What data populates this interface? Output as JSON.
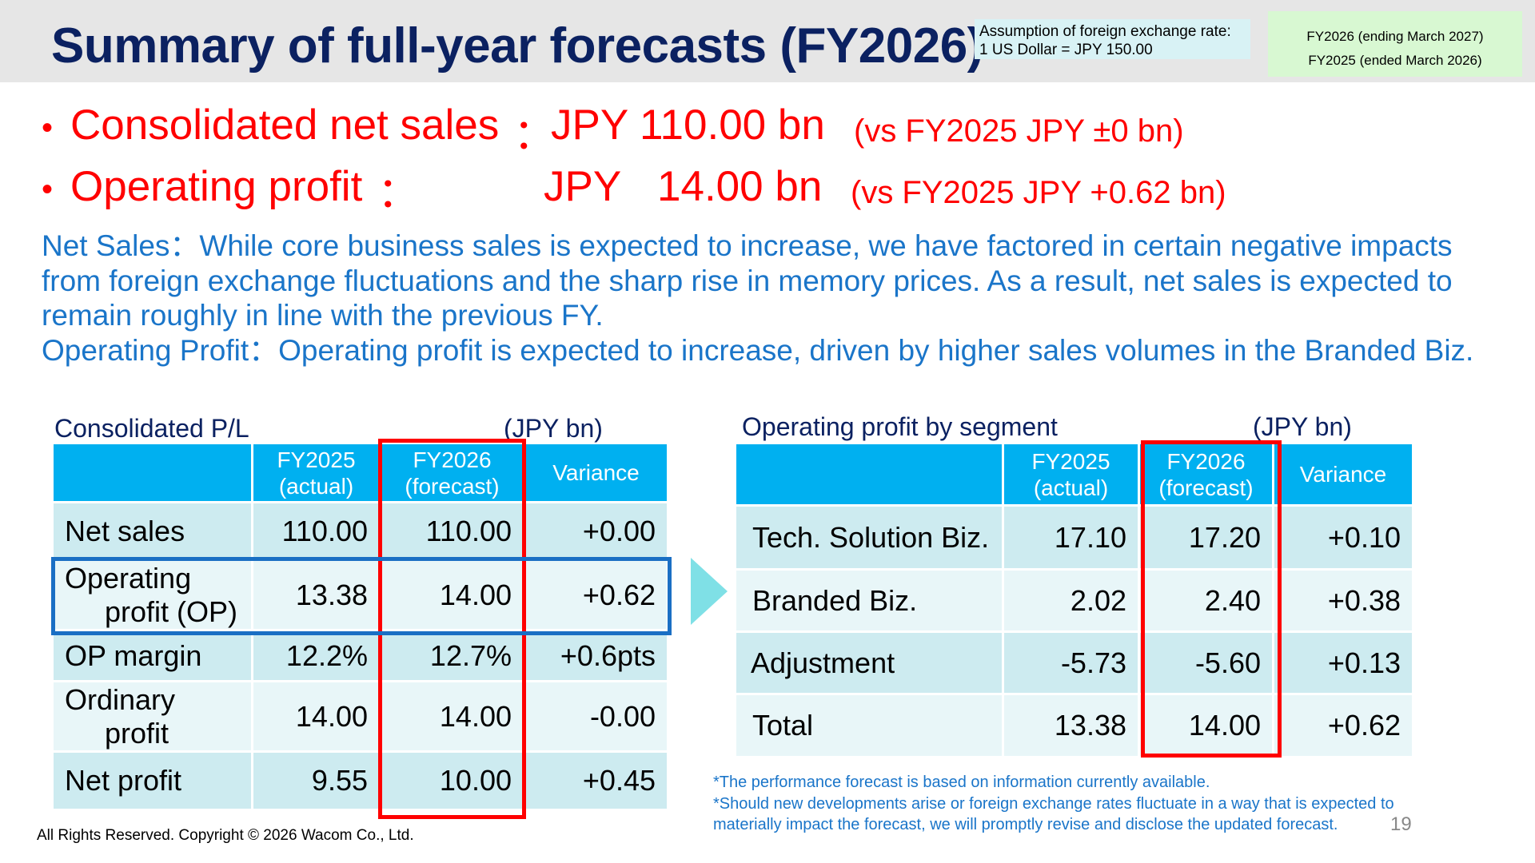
{
  "header": {
    "title": "Summary of full-year forecasts (FY2026)",
    "fx_assumption": {
      "line1": "Assumption of  foreign exchange rate:",
      "line2": "1 US Dollar = JPY 150.00"
    },
    "fiscal_years": {
      "line1": "FY2026 (ending March 2027)",
      "line2": "FY2025 (ended March 2026)"
    }
  },
  "headlines": [
    {
      "bullet": "•",
      "label": "Consolidated net sales",
      "sep": "：",
      "value": "JPY 110.00 bn",
      "comparison": "(vs FY2025  JPY    ±0 bn)"
    },
    {
      "bullet": "•",
      "label": "Operating profit",
      "sep": "：",
      "currency": "JPY",
      "amount": "14.00 bn",
      "comparison": "(vs FY2025  JPY +0.62 bn)"
    }
  ],
  "commentary": {
    "net_sales": "Net Sales：While core business sales is expected to increase, we have factored in certain negative impacts from foreign exchange fluctuations and the sharp rise in memory prices. As a result, net sales is expected to remain roughly in line with the previous FY.",
    "operating_profit": "Operating Profit：Operating profit is expected to increase, driven by higher sales volumes in the Branded Biz."
  },
  "pl_table": {
    "title": "Consolidated P/L",
    "unit": "(JPY bn)",
    "headers": [
      {
        "line1": "FY2025",
        "line2": "(actual)"
      },
      {
        "line1": "FY2026",
        "line2": "(forecast)"
      },
      {
        "line1": "Variance",
        "line2": ""
      }
    ],
    "rows": [
      {
        "label1": "Net sales",
        "label2": "",
        "fy2025": "110.00",
        "fy2026": "110.00",
        "variance": "+0.00"
      },
      {
        "label1": "Operating",
        "label2": "profit (OP)",
        "fy2025": "13.38",
        "fy2026": "14.00",
        "variance": "+0.62"
      },
      {
        "label1": "OP margin",
        "label2": "",
        "fy2025": "12.2%",
        "fy2026": "12.7%",
        "variance": "+0.6pts"
      },
      {
        "label1": "Ordinary",
        "label2": "profit",
        "fy2025": "14.00",
        "fy2026": "14.00",
        "variance": "-0.00"
      },
      {
        "label1": "Net profit",
        "label2": "",
        "fy2025": "9.55",
        "fy2026": "10.00",
        "variance": "+0.45"
      }
    ]
  },
  "segment_table": {
    "title": "Operating profit by segment",
    "unit": "(JPY bn)",
    "headers": [
      {
        "line1": "FY2025",
        "line2": "(actual)"
      },
      {
        "line1": "FY2026",
        "line2": "(forecast)"
      },
      {
        "line1": "Variance",
        "line2": ""
      }
    ],
    "rows": [
      {
        "label": "Tech. Solution Biz.",
        "fy2025": "17.10",
        "fy2026": "17.20",
        "variance": "+0.10"
      },
      {
        "label": "Branded Biz.",
        "fy2025": "2.02",
        "fy2026": "2.40",
        "variance": "+0.38"
      },
      {
        "label": "Adjustment",
        "fy2025": "-5.73",
        "fy2026": "-5.60",
        "variance": "+0.13"
      },
      {
        "label": "Total",
        "fy2025": "13.38",
        "fy2026": "14.00",
        "variance": "+0.62"
      }
    ]
  },
  "footnotes": [
    "*The performance forecast is based on information currently available.",
    "*Should new developments arise or foreign exchange rates fluctuate in a way that is expected to materially impact the forecast, we will promptly revise and disclose the updated forecast."
  ],
  "footer": {
    "copyright": "All Rights Reserved. Copyright © 2026 Wacom Co., Ltd.",
    "page_number": "19"
  },
  "colors": {
    "title": "#0b2161",
    "headline": "#ff0000",
    "commentary": "#1a75c9",
    "table_header": "#00b0f0",
    "row_dark": "#cdebf0",
    "row_light": "#e8f6f8",
    "highlight_red": "#ff0000",
    "highlight_blue": "#1a6fc4",
    "arrow": "#7fe0e6"
  }
}
